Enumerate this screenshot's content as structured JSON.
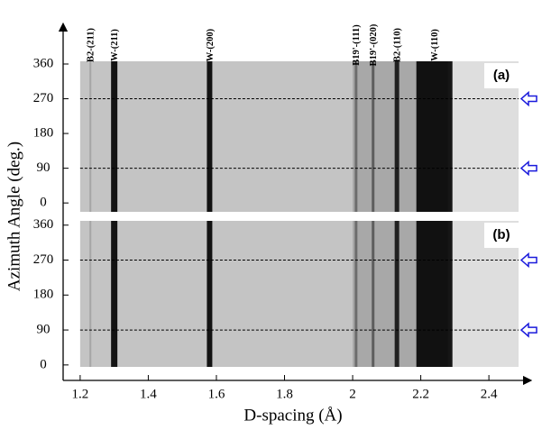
{
  "chart_data": {
    "type": "image",
    "x_label": "D-spacing (Å)",
    "y_label": "Azimuth Angle (deg.)",
    "xlim": [
      1.15,
      2.45
    ],
    "xticks": [
      1.2,
      1.4,
      1.6,
      1.8,
      2.0,
      2.2,
      2.4
    ],
    "peaks": [
      {
        "label": "B2-(211)",
        "x": 1.23
      },
      {
        "label": "W-(211)",
        "x": 1.3
      },
      {
        "label": "W-(200)",
        "x": 1.58
      },
      {
        "label": "B19'-(111)",
        "x": 2.01
      },
      {
        "label": "B19'-(020)",
        "x": 2.06
      },
      {
        "label": "B2-(110)",
        "x": 2.13
      },
      {
        "label": "W-(110)",
        "x": 2.24
      }
    ],
    "marked_angles": [
      270,
      90
    ],
    "panels": [
      {
        "label": "(a)",
        "ylim": [
          -23,
          367
        ],
        "yticks": [
          0,
          90,
          180,
          270,
          360
        ]
      },
      {
        "label": "(b)",
        "ylim": [
          -5,
          371
        ],
        "yticks": [
          0,
          90,
          180,
          270,
          360
        ]
      }
    ]
  }
}
